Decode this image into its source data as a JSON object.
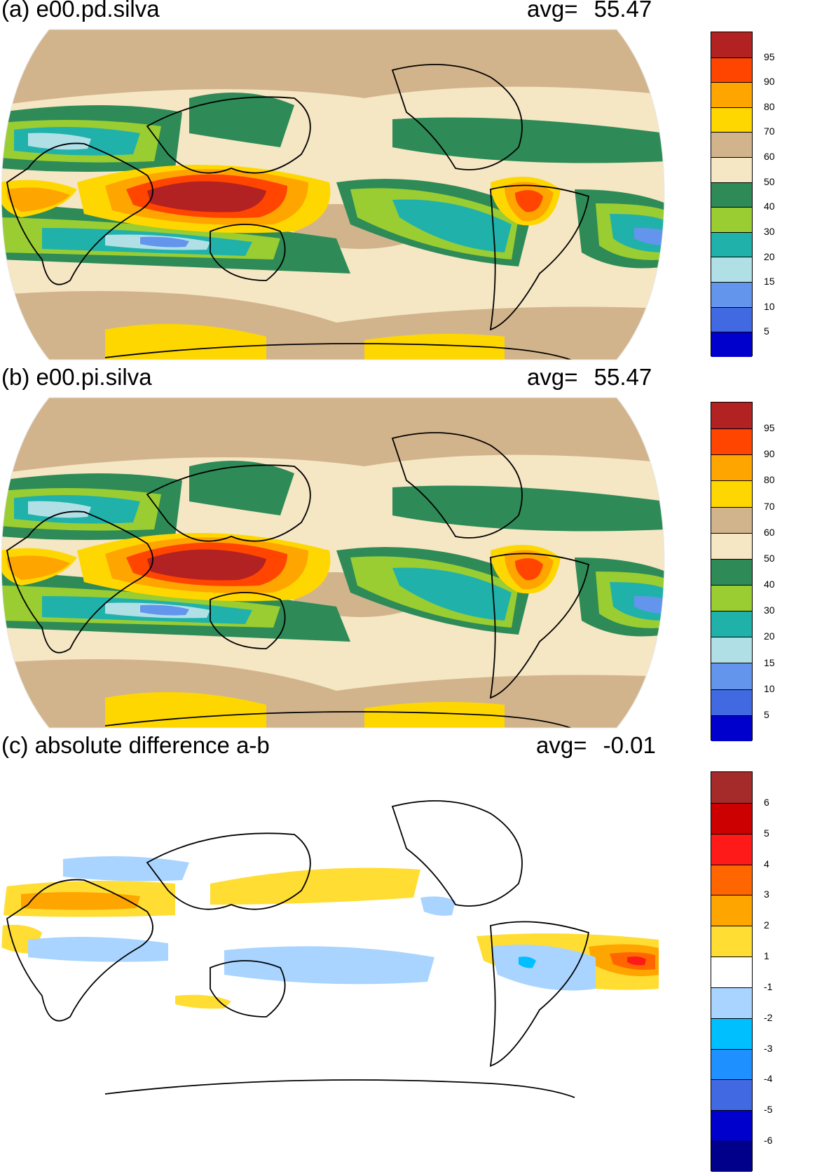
{
  "panels": [
    {
      "title": "(a) e00.pd.silva",
      "avg_label": "avg=",
      "avg_value": "55.47",
      "colorbar": {
        "labels": [
          "95",
          "90",
          "80",
          "70",
          "60",
          "50",
          "40",
          "30",
          "20",
          "15",
          "10",
          "5"
        ],
        "colors": [
          "#b22222",
          "#ff4500",
          "#ffa500",
          "#ffd700",
          "#d2b48c",
          "#f5e6c4",
          "#2e8b57",
          "#9acd32",
          "#20b2aa",
          "#b0e0e6",
          "#6495ed",
          "#4169e1",
          "#0000cd"
        ]
      }
    },
    {
      "title": "(b) e00.pi.silva",
      "avg_label": "avg=",
      "avg_value": "55.47",
      "colorbar": {
        "labels": [
          "95",
          "90",
          "80",
          "70",
          "60",
          "50",
          "40",
          "30",
          "20",
          "15",
          "10",
          "5"
        ],
        "colors": [
          "#b22222",
          "#ff4500",
          "#ffa500",
          "#ffd700",
          "#d2b48c",
          "#f5e6c4",
          "#2e8b57",
          "#9acd32",
          "#20b2aa",
          "#b0e0e6",
          "#6495ed",
          "#4169e1",
          "#0000cd"
        ]
      }
    },
    {
      "title": "(c) absolute difference a-b",
      "avg_label": "avg=",
      "avg_value": "-0.01",
      "colorbar": {
        "labels": [
          "6",
          "5",
          "4",
          "3",
          "2",
          "1",
          "-1",
          "-2",
          "-3",
          "-4",
          "-5",
          "-6"
        ],
        "colors": [
          "#a52a2a",
          "#cc0000",
          "#ff1a1a",
          "#ff6600",
          "#ffa500",
          "#ffdd33",
          "#ffffff",
          "#a8d4ff",
          "#00bfff",
          "#1e90ff",
          "#4169e1",
          "#0000cd",
          "#00008b"
        ]
      }
    }
  ],
  "chart_data": {
    "type": "heatmap",
    "projection": "Robinson",
    "maps": [
      {
        "name": "e00.pd.silva",
        "average": 55.47,
        "levels": [
          5,
          10,
          15,
          20,
          30,
          40,
          50,
          60,
          70,
          80,
          90,
          95
        ]
      },
      {
        "name": "e00.pi.silva",
        "average": 55.47,
        "levels": [
          5,
          10,
          15,
          20,
          30,
          40,
          50,
          60,
          70,
          80,
          90,
          95
        ]
      },
      {
        "name": "absolute difference a-b",
        "average": -0.01,
        "levels": [
          -6,
          -5,
          -4,
          -3,
          -2,
          -1,
          1,
          2,
          3,
          4,
          5,
          6
        ]
      }
    ]
  }
}
